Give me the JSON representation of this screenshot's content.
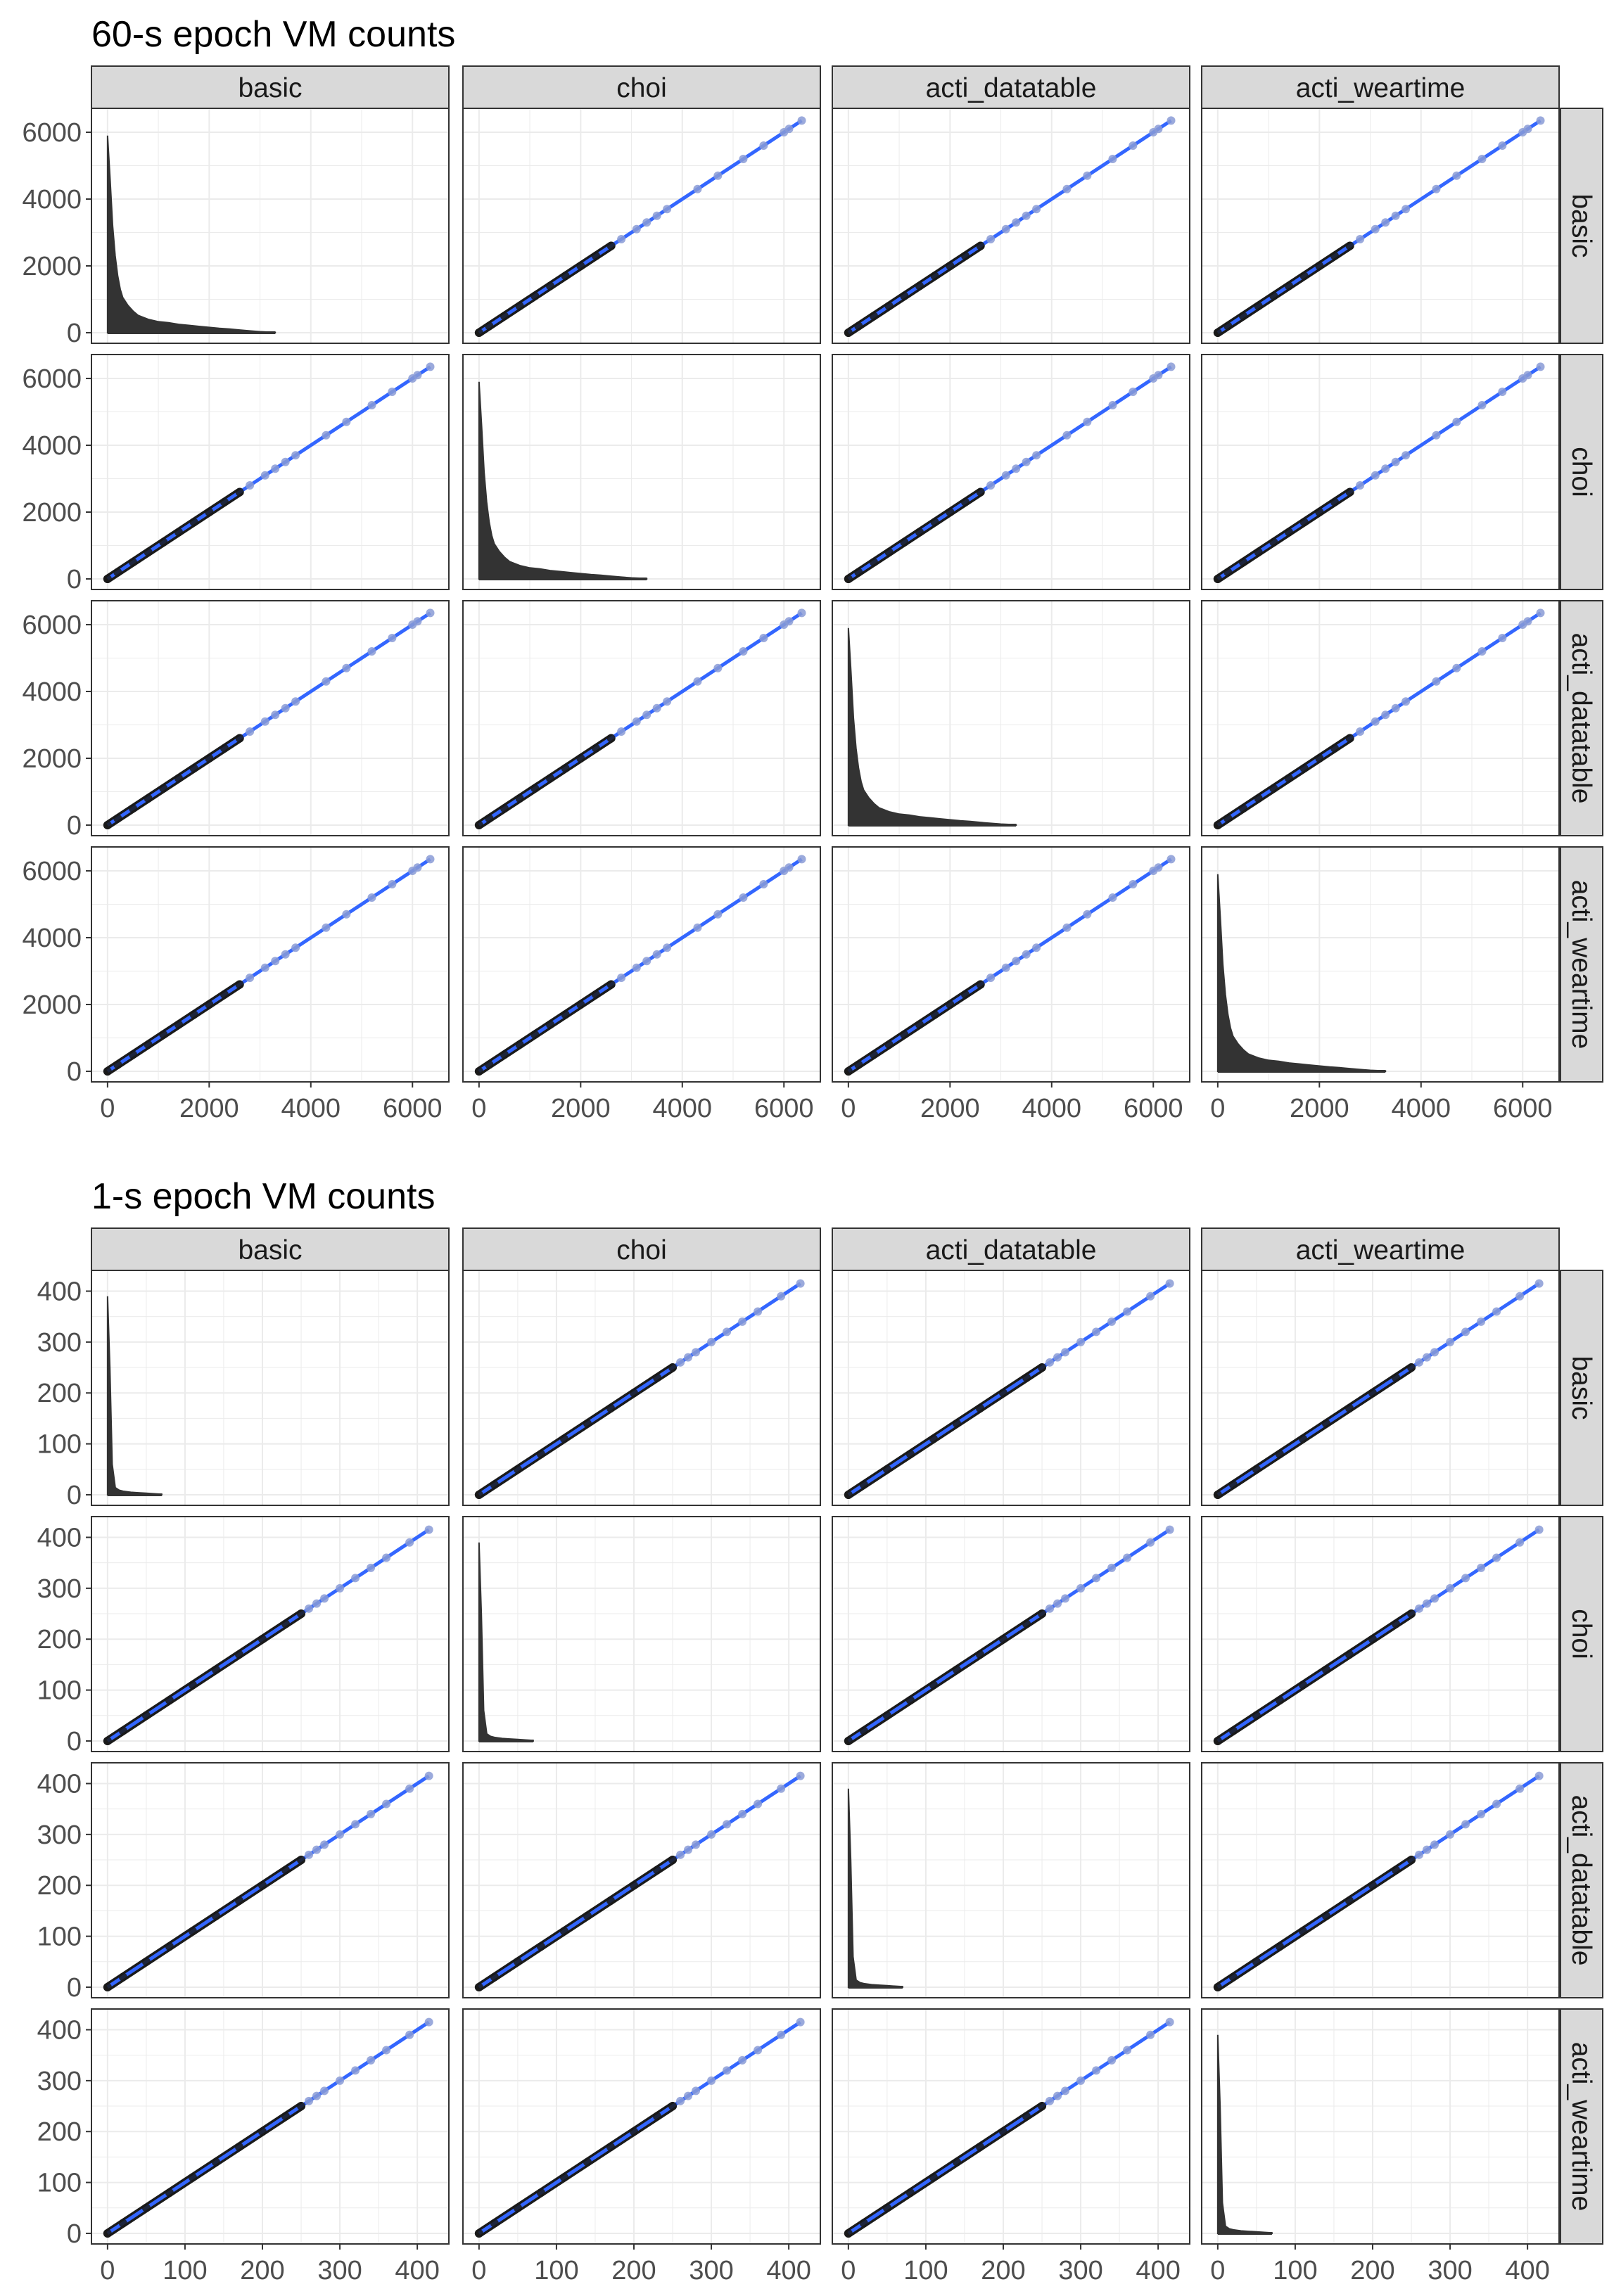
{
  "chart_data": [
    {
      "type": "scatter",
      "subtype": "scatterplot-matrix",
      "title": "60-s epoch VM counts",
      "variables": [
        "basic",
        "choi",
        "acti_datatable",
        "acti_weartime"
      ],
      "axis_range": [
        0,
        6400
      ],
      "ticks": [
        0,
        2000,
        4000,
        6000
      ],
      "tick_labels": [
        "0",
        "2000",
        "4000",
        "6000"
      ],
      "diagonal": {
        "type": "histogram",
        "note": "heavily right-skewed distribution, peak near 0",
        "bins_x": [
          0,
          50,
          100,
          150,
          200,
          250,
          300,
          400,
          500,
          600,
          800,
          1000,
          1200,
          1400,
          1600,
          1800,
          2000,
          2200,
          2400,
          2600,
          2800,
          3000,
          3300
        ],
        "bins_y": [
          5900,
          4600,
          3200,
          2300,
          1700,
          1300,
          1050,
          820,
          650,
          520,
          400,
          330,
          300,
          250,
          220,
          190,
          160,
          130,
          110,
          80,
          55,
          30,
          10
        ]
      },
      "offdiagonal": {
        "points_x": [
          0,
          200,
          500,
          800,
          1100,
          1400,
          1700,
          2000,
          2300,
          2600,
          2800,
          3100,
          3300,
          3500,
          3700,
          4300,
          4700,
          5200,
          5600,
          6000,
          6100,
          6350
        ],
        "fit_line": {
          "x": [
            0,
            6350
          ],
          "y": [
            0,
            6350
          ]
        }
      },
      "grid": true
    },
    {
      "type": "scatter",
      "subtype": "scatterplot-matrix",
      "title": "1-s epoch VM counts",
      "variables": [
        "basic",
        "choi",
        "acti_datatable",
        "acti_weartime"
      ],
      "axis_range": [
        0,
        420
      ],
      "ticks": [
        0,
        100,
        200,
        300,
        400
      ],
      "tick_labels": [
        "0",
        "100",
        "200",
        "300",
        "400"
      ],
      "diagonal": {
        "type": "histogram",
        "note": "extremely right-skewed distribution, peak at 0",
        "bins_x": [
          0,
          3,
          6,
          10,
          15,
          20,
          30,
          40,
          50,
          60,
          70
        ],
        "bins_y": [
          390,
          250,
          60,
          14,
          9,
          7,
          5,
          4,
          3,
          2,
          1
        ]
      },
      "offdiagonal": {
        "points_x": [
          0,
          20,
          50,
          80,
          110,
          140,
          170,
          200,
          230,
          250,
          260,
          270,
          280,
          300,
          320,
          340,
          360,
          390,
          415
        ],
        "fit_line": {
          "x": [
            0,
            415
          ],
          "y": [
            0,
            415
          ]
        }
      },
      "grid": true
    }
  ],
  "colors": {
    "panel_border": "#333333",
    "strip_fill": "#d9d9d9",
    "grid": "#ebebeb",
    "histogram_fill": "#333333",
    "points": "#1a1a1a",
    "fit_line": "#3366ff",
    "fit_points": "#8a9bd6"
  }
}
